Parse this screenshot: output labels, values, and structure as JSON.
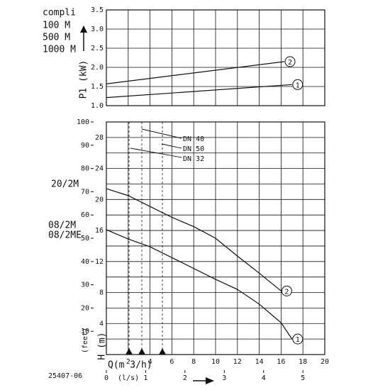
{
  "chart_data": [
    {
      "type": "line",
      "annotations": [
        "compli",
        "100 M",
        "500 M",
        "1000 M"
      ],
      "ylabel": "P1 (kW)",
      "xlim": [
        0,
        20
      ],
      "ylim": [
        1,
        3.5
      ],
      "yticks": [
        {
          "value": 1,
          "label": "1.0"
        },
        1.5,
        {
          "value": 2,
          "label": "2.0"
        },
        2.5,
        {
          "value": 3,
          "label": "3.0"
        },
        3.5
      ],
      "grid": true,
      "series": [
        {
          "name": "2",
          "color": "#111111",
          "x": [
            0,
            16.3
          ],
          "values": [
            1.57,
            2.15
          ]
        },
        {
          "name": "1",
          "color": "#111111",
          "x": [
            0,
            17
          ],
          "values": [
            1.21,
            1.55
          ]
        }
      ]
    },
    {
      "type": "line",
      "code": "25407-06",
      "annotations": [
        "20/2M",
        "08/2M",
        "08/2ME"
      ],
      "pipe_labels": [
        "DN 40",
        "DN 50",
        "DN 32"
      ],
      "xlabel": "Q(m 3/h)",
      "x2label": "(l/s)",
      "ylabel": "H (m)",
      "y2label": "(feet)",
      "xlim": [
        0,
        20
      ],
      "xticks": [
        2,
        4,
        6,
        8,
        10,
        12,
        14,
        16,
        18,
        20
      ],
      "x2lim": [
        0,
        5.556
      ],
      "x2ticks": [
        0,
        1,
        2,
        3,
        4,
        5
      ],
      "ylim": [
        0,
        30
      ],
      "yticks": [
        4,
        8,
        12,
        16,
        20,
        24,
        28
      ],
      "yminor": [
        2,
        6,
        10,
        14,
        18,
        22,
        26
      ],
      "y2lim": [
        0,
        100
      ],
      "y2ticks": [
        10,
        20,
        30,
        40,
        50,
        60,
        70,
        80,
        90,
        100
      ],
      "grid": true,
      "series": [
        {
          "name": "2",
          "color": "#111111",
          "x": [
            0,
            2,
            4,
            6,
            8,
            10,
            12,
            14,
            16
          ],
          "values": [
            21.4,
            20.5,
            19.1,
            17.7,
            16.5,
            15,
            12.7,
            10.5,
            8.2
          ]
        },
        {
          "name": "1",
          "color": "#111111",
          "x": [
            0,
            2,
            4,
            6,
            8,
            10,
            12,
            14,
            16,
            17
          ],
          "values": [
            16.1,
            14.9,
            13.9,
            12.5,
            11.1,
            9.7,
            8.4,
            6.5,
            4.1,
            2
          ]
        }
      ]
    }
  ]
}
